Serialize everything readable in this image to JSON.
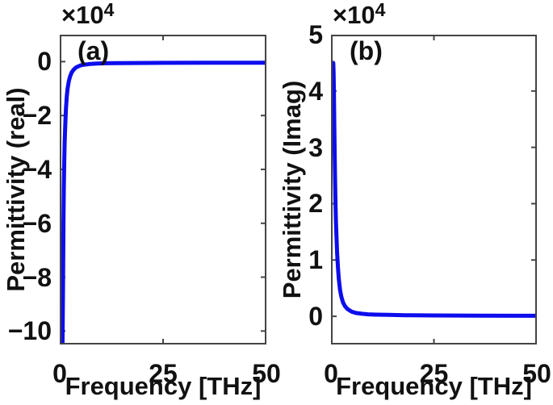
{
  "figure": {
    "background": "#ffffff",
    "text_color": "#111111",
    "axis_color": "#444444"
  },
  "chart_data": [
    {
      "type": "line",
      "panel_label": "(a)",
      "xlabel": "Frequency [THz]",
      "ylabel": "Permittivity (real)",
      "exponent_base": "×10",
      "exponent_power": "4",
      "y_scale": 10000,
      "xlim": [
        0,
        50
      ],
      "ylim": [
        -10.5,
        1
      ],
      "xticks": [
        0,
        25,
        50
      ],
      "yticks": [
        0,
        -2,
        -4,
        -6,
        -8,
        -10
      ],
      "grid": false,
      "legend": null,
      "line_color": "#0d0dee",
      "line_width": 5,
      "tick_len": 7,
      "points": [
        [
          0.55,
          -12.0
        ],
        [
          0.65,
          -10.8
        ],
        [
          0.7,
          -10.0
        ],
        [
          0.75,
          -9.3
        ],
        [
          0.8,
          -8.3
        ],
        [
          0.85,
          -7.0
        ],
        [
          0.9,
          -6.0
        ],
        [
          1.0,
          -4.6
        ],
        [
          1.1,
          -3.7
        ],
        [
          1.2,
          -3.0
        ],
        [
          1.35,
          -2.3
        ],
        [
          1.5,
          -1.75
        ],
        [
          1.7,
          -1.3
        ],
        [
          1.9,
          -1.0
        ],
        [
          2.2,
          -0.72
        ],
        [
          2.5,
          -0.55
        ],
        [
          2.9,
          -0.4
        ],
        [
          3.4,
          -0.29
        ],
        [
          4.0,
          -0.21
        ],
        [
          5.0,
          -0.14
        ],
        [
          6.0,
          -0.11
        ],
        [
          7.5,
          -0.085
        ],
        [
          9.0,
          -0.07
        ],
        [
          11,
          -0.06
        ],
        [
          14,
          -0.055
        ],
        [
          18,
          -0.05
        ],
        [
          25,
          -0.045
        ],
        [
          35,
          -0.04
        ],
        [
          50,
          -0.04
        ]
      ]
    },
    {
      "type": "line",
      "panel_label": "(b)",
      "xlabel": "Frequency [THz]",
      "ylabel": "Permittivity (Imag)",
      "exponent_base": "×10",
      "exponent_power": "4",
      "y_scale": 10000,
      "xlim": [
        0,
        50
      ],
      "ylim": [
        -0.5,
        5
      ],
      "xticks": [
        0,
        25,
        50
      ],
      "yticks": [
        0,
        1,
        2,
        3,
        4,
        5
      ],
      "grid": false,
      "legend": null,
      "line_color": "#0d0dee",
      "line_width": 5,
      "tick_len": 7,
      "points": [
        [
          0.55,
          4.5
        ],
        [
          0.62,
          4.35
        ],
        [
          0.7,
          4.0
        ],
        [
          0.8,
          3.4
        ],
        [
          0.9,
          2.85
        ],
        [
          1.0,
          2.4
        ],
        [
          1.1,
          2.0
        ],
        [
          1.2,
          1.7
        ],
        [
          1.35,
          1.38
        ],
        [
          1.5,
          1.12
        ],
        [
          1.7,
          0.85
        ],
        [
          1.9,
          0.66
        ],
        [
          2.2,
          0.47
        ],
        [
          2.5,
          0.35
        ],
        [
          2.9,
          0.25
        ],
        [
          3.4,
          0.18
        ],
        [
          4.0,
          0.13
        ],
        [
          5.0,
          0.085
        ],
        [
          6.0,
          0.06
        ],
        [
          7.5,
          0.045
        ],
        [
          9.0,
          0.035
        ],
        [
          11,
          0.03
        ],
        [
          14,
          0.025
        ],
        [
          18,
          0.02
        ],
        [
          25,
          0.015
        ],
        [
          35,
          0.012
        ],
        [
          50,
          0.01
        ]
      ]
    }
  ]
}
